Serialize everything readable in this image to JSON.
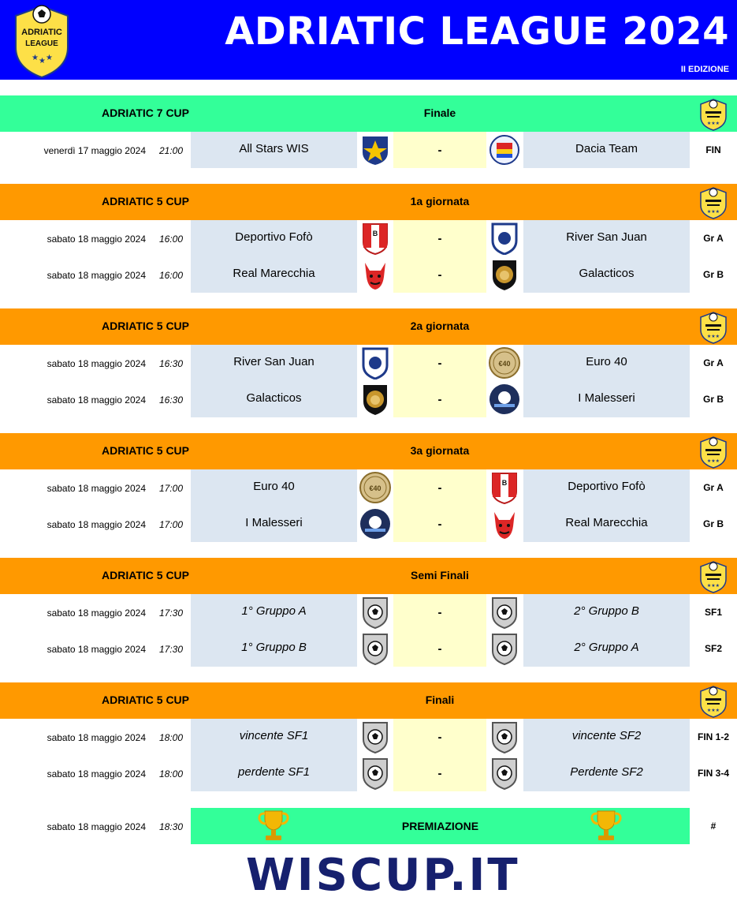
{
  "header": {
    "title": "ADRIATIC LEAGUE 2024",
    "subtitle": "II EDIZIONE",
    "logo_text_1": "ADRIATIC",
    "logo_text_2": "LEAGUE",
    "bg_color": "#0000ff"
  },
  "colors": {
    "green": "#33ff99",
    "orange": "#ff9900",
    "team_cell": "#dce6f1",
    "vs_cell": "#ffffcc"
  },
  "sections": [
    {
      "cup": "ADRIATIC 7 CUP",
      "round": "Finale",
      "color": "#33ff99",
      "matches": [
        {
          "date": "venerdì 17 maggio 2024",
          "time": "21:00",
          "home": "All Stars WIS",
          "vs": "-",
          "away": "Dacia Team",
          "code": "FIN",
          "home_icon": "all-stars-icon",
          "away_icon": "dacia-team-icon"
        }
      ]
    },
    {
      "cup": "ADRIATIC 5 CUP",
      "round": "1a giornata",
      "color": "#ff9900",
      "matches": [
        {
          "date": "sabato 18 maggio 2024",
          "time": "16:00",
          "home": "Deportivo Fofò",
          "vs": "-",
          "away": "River San Juan",
          "code": "Gr A",
          "home_icon": "fbi-shield-icon",
          "away_icon": "river-shield-icon"
        },
        {
          "date": "sabato 18 maggio 2024",
          "time": "16:00",
          "home": "Real Marecchia",
          "vs": "-",
          "away": "Galacticos",
          "code": "Gr B",
          "home_icon": "devil-icon",
          "away_icon": "lion-shield-icon"
        }
      ]
    },
    {
      "cup": "ADRIATIC 5 CUP",
      "round": "2a giornata",
      "color": "#ff9900",
      "matches": [
        {
          "date": "sabato 18 maggio 2024",
          "time": "16:30",
          "home": "River San Juan",
          "vs": "-",
          "away": "Euro 40",
          "code": "Gr A",
          "home_icon": "river-shield-icon",
          "away_icon": "euro-coin-icon"
        },
        {
          "date": "sabato 18 maggio 2024",
          "time": "16:30",
          "home": "Galacticos",
          "vs": "-",
          "away": "I Malesseri",
          "code": "Gr B",
          "home_icon": "lion-shield-icon",
          "away_icon": "malesseri-ball-icon"
        }
      ]
    },
    {
      "cup": "ADRIATIC 5 CUP",
      "round": "3a giornata",
      "color": "#ff9900",
      "matches": [
        {
          "date": "sabato 18 maggio 2024",
          "time": "17:00",
          "home": "Euro 40",
          "vs": "-",
          "away": "Deportivo Fofò",
          "code": "Gr A",
          "home_icon": "euro-coin-icon",
          "away_icon": "fbi-shield-icon"
        },
        {
          "date": "sabato 18 maggio 2024",
          "time": "17:00",
          "home": "I Malesseri",
          "vs": "-",
          "away": "Real Marecchia",
          "code": "Gr B",
          "home_icon": "malesseri-ball-icon",
          "away_icon": "devil-icon"
        }
      ]
    },
    {
      "cup": "ADRIATIC 5 CUP",
      "round": "Semi Finali",
      "color": "#ff9900",
      "matches": [
        {
          "date": "sabato 18 maggio 2024",
          "time": "17:30",
          "home": "1° Gruppo A",
          "vs": "-",
          "away": "2° Gruppo B",
          "code": "SF1",
          "home_icon": "generic-ball-shield-icon",
          "away_icon": "generic-ball-shield-icon",
          "italic": true
        },
        {
          "date": "sabato 18 maggio 2024",
          "time": "17:30",
          "home": "1° Gruppo B",
          "vs": "-",
          "away": "2° Gruppo A",
          "code": "SF2",
          "home_icon": "generic-ball-shield-icon",
          "away_icon": "generic-ball-shield-icon",
          "italic": true
        }
      ]
    },
    {
      "cup": "ADRIATIC 5 CUP",
      "round": "Finali",
      "color": "#ff9900",
      "matches": [
        {
          "date": "sabato 18 maggio 2024",
          "time": "18:00",
          "home": "vincente SF1",
          "vs": "-",
          "away": "vincente SF2",
          "code": "FIN 1-2",
          "home_icon": "generic-ball-shield-icon",
          "away_icon": "generic-ball-shield-icon",
          "italic": true
        },
        {
          "date": "sabato 18 maggio 2024",
          "time": "18:00",
          "home": "perdente SF1",
          "vs": "-",
          "away": "Perdente SF2",
          "code": "FIN 3-4",
          "home_icon": "generic-ball-shield-icon",
          "away_icon": "generic-ball-shield-icon",
          "italic": true
        }
      ]
    }
  ],
  "premiazione": {
    "date": "sabato 18 maggio 2024",
    "time": "18:30",
    "label": "PREMIAZIONE",
    "code": "#"
  },
  "footer": {
    "brand": "WISCUP.IT"
  }
}
